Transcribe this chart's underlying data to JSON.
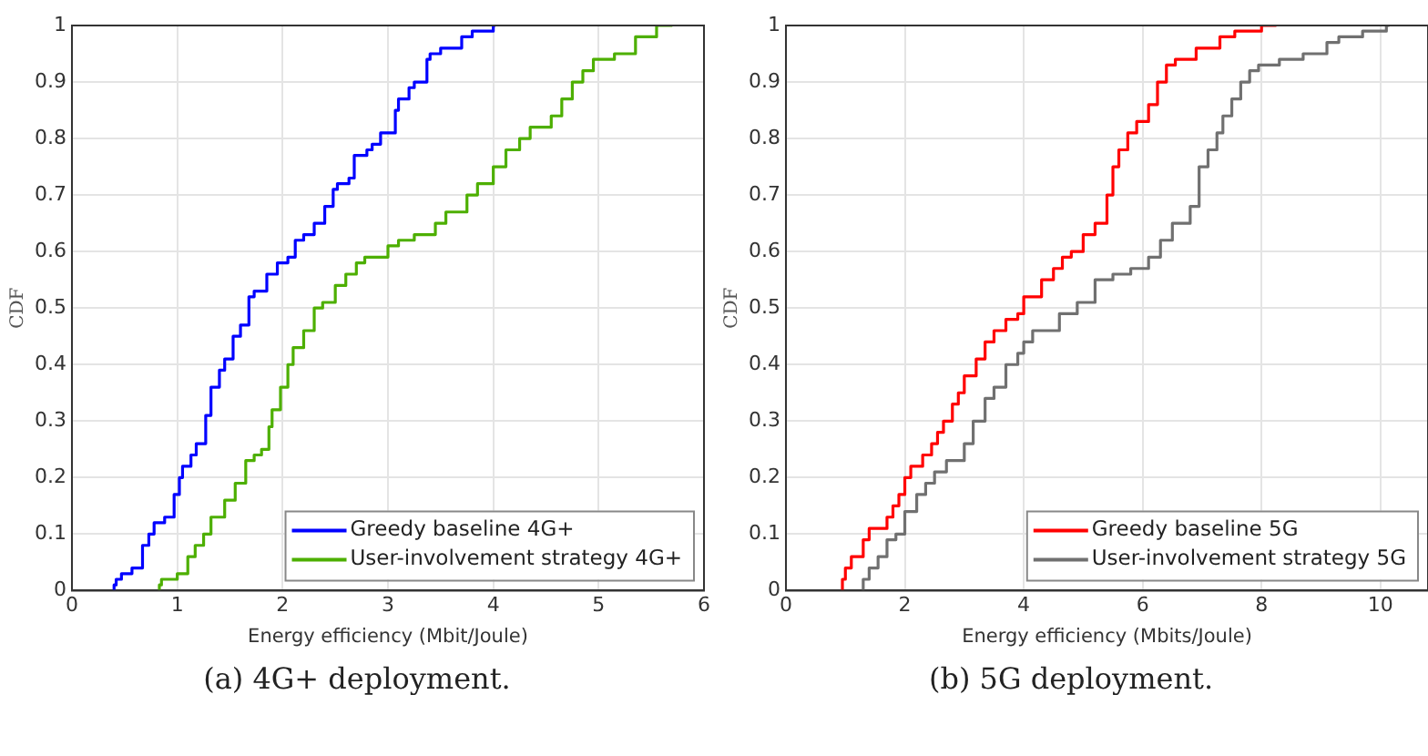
{
  "chart_data": [
    {
      "type": "step",
      "xlabel": "Energy efficiency (Mbit/Joule)",
      "ylabel": "CDF",
      "xlim": [
        0,
        6
      ],
      "xticks": [
        0,
        1,
        2,
        3,
        4,
        5,
        6
      ],
      "ylim": [
        0,
        1
      ],
      "yticks": [
        0,
        0.1,
        0.2,
        0.3,
        0.4,
        0.5,
        0.6,
        0.7,
        0.8,
        0.9,
        1
      ],
      "grid": true,
      "legend": "bottom right",
      "annotations": [
        "(a) 4G+ deployment."
      ],
      "series": [
        {
          "name": "Greedy baseline 4G+",
          "color": "#0000ff",
          "x": [
            0.4,
            0.42,
            0.47,
            0.57,
            0.67,
            0.73,
            0.78,
            0.88,
            0.97,
            1.02,
            1.05,
            1.13,
            1.18,
            1.27,
            1.32,
            1.4,
            1.45,
            1.53,
            1.6,
            1.68,
            1.73,
            1.85,
            1.95,
            2.05,
            2.12,
            2.2,
            2.3,
            2.4,
            2.48,
            2.52,
            2.63,
            2.68,
            2.8,
            2.85,
            2.93,
            3.07,
            3.1,
            3.2,
            3.25,
            3.37,
            3.4,
            3.5,
            3.7,
            3.8,
            4.0,
            4.02
          ],
          "values": [
            0,
            0.01,
            0.02,
            0.03,
            0.04,
            0.08,
            0.1,
            0.12,
            0.13,
            0.17,
            0.2,
            0.22,
            0.24,
            0.26,
            0.31,
            0.36,
            0.39,
            0.41,
            0.45,
            0.47,
            0.52,
            0.53,
            0.56,
            0.58,
            0.59,
            0.62,
            0.63,
            0.65,
            0.68,
            0.71,
            0.72,
            0.73,
            0.77,
            0.78,
            0.79,
            0.81,
            0.85,
            0.87,
            0.89,
            0.9,
            0.94,
            0.95,
            0.96,
            0.98,
            0.99,
            1
          ]
        },
        {
          "name": "User-involvement strategy 4G+",
          "color": "#4daf00",
          "x": [
            0.83,
            0.85,
            1.0,
            1.1,
            1.17,
            1.25,
            1.32,
            1.45,
            1.55,
            1.65,
            1.73,
            1.8,
            1.87,
            1.9,
            1.98,
            2.05,
            2.1,
            2.2,
            2.3,
            2.38,
            2.5,
            2.6,
            2.7,
            2.78,
            3.0,
            3.1,
            3.25,
            3.45,
            3.55,
            3.75,
            3.85,
            4.0,
            4.12,
            4.25,
            4.35,
            4.55,
            4.65,
            4.75,
            4.85,
            4.95,
            5.15,
            5.35,
            5.55,
            5.7
          ],
          "values": [
            0,
            0.01,
            0.02,
            0.03,
            0.06,
            0.08,
            0.1,
            0.13,
            0.16,
            0.19,
            0.23,
            0.24,
            0.25,
            0.29,
            0.32,
            0.36,
            0.4,
            0.43,
            0.46,
            0.5,
            0.51,
            0.54,
            0.56,
            0.58,
            0.59,
            0.61,
            0.62,
            0.63,
            0.65,
            0.67,
            0.7,
            0.72,
            0.75,
            0.78,
            0.8,
            0.82,
            0.84,
            0.87,
            0.9,
            0.92,
            0.94,
            0.95,
            0.98,
            1
          ]
        }
      ]
    },
    {
      "type": "step",
      "xlabel": "Energy efficiency (Mbits/Joule)",
      "ylabel": "CDF",
      "xlim": [
        0,
        10.8
      ],
      "xticks": [
        0,
        2,
        4,
        6,
        8,
        10
      ],
      "ylim": [
        0,
        1
      ],
      "yticks": [
        0,
        0.1,
        0.2,
        0.3,
        0.4,
        0.5,
        0.6,
        0.7,
        0.8,
        0.9,
        1
      ],
      "grid": true,
      "legend": "bottom right",
      "annotations": [
        "(b) 5G deployment."
      ],
      "series": [
        {
          "name": "Greedy baseline 5G",
          "color": "#ff0000",
          "x": [
            0.95,
            1.0,
            1.1,
            1.3,
            1.4,
            1.7,
            1.8,
            1.9,
            2.0,
            2.1,
            2.3,
            2.45,
            2.55,
            2.65,
            2.8,
            2.9,
            3.0,
            3.2,
            3.35,
            3.5,
            3.7,
            3.9,
            4.0,
            4.3,
            4.5,
            4.65,
            4.8,
            5.0,
            5.2,
            5.4,
            5.5,
            5.6,
            5.75,
            5.9,
            6.1,
            6.25,
            6.4,
            6.55,
            6.9,
            7.3,
            7.55,
            8.0,
            8.25
          ],
          "values": [
            0,
            0.02,
            0.04,
            0.06,
            0.09,
            0.11,
            0.13,
            0.15,
            0.17,
            0.2,
            0.22,
            0.24,
            0.26,
            0.28,
            0.3,
            0.33,
            0.35,
            0.38,
            0.41,
            0.44,
            0.46,
            0.48,
            0.49,
            0.52,
            0.55,
            0.57,
            0.59,
            0.6,
            0.63,
            0.65,
            0.7,
            0.75,
            0.78,
            0.81,
            0.83,
            0.86,
            0.9,
            0.93,
            0.94,
            0.96,
            0.98,
            0.99,
            1
          ]
        },
        {
          "name": "User-involvement strategy 5G",
          "color": "#707070",
          "x": [
            1.3,
            1.4,
            1.55,
            1.7,
            1.85,
            2.0,
            2.2,
            2.35,
            2.5,
            2.7,
            3.0,
            3.15,
            3.35,
            3.5,
            3.7,
            3.9,
            4.0,
            4.15,
            4.6,
            4.9,
            5.2,
            5.5,
            5.8,
            6.1,
            6.3,
            6.5,
            6.8,
            6.95,
            7.1,
            7.25,
            7.35,
            7.5,
            7.65,
            7.8,
            7.95,
            8.3,
            8.7,
            9.1,
            9.3,
            9.7,
            10.1,
            10.15
          ],
          "values": [
            0,
            0.02,
            0.04,
            0.06,
            0.09,
            0.1,
            0.14,
            0.17,
            0.19,
            0.21,
            0.23,
            0.26,
            0.3,
            0.34,
            0.36,
            0.4,
            0.42,
            0.44,
            0.46,
            0.49,
            0.51,
            0.55,
            0.56,
            0.57,
            0.59,
            0.62,
            0.65,
            0.68,
            0.75,
            0.78,
            0.81,
            0.84,
            0.87,
            0.9,
            0.92,
            0.93,
            0.94,
            0.95,
            0.97,
            0.98,
            0.99,
            1
          ]
        }
      ]
    }
  ]
}
